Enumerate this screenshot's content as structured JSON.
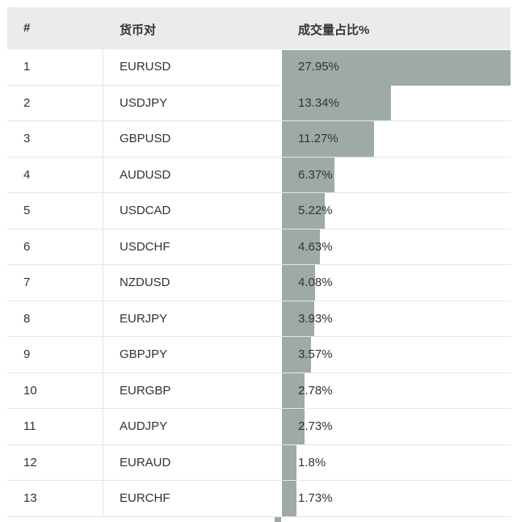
{
  "header": {
    "rank": "#",
    "pair": "货币对",
    "share": "成交量占比%"
  },
  "colors": {
    "bar": "#9eaaa8",
    "header_bg": "#ebebeb"
  },
  "chart_data": {
    "type": "table",
    "columns": [
      "#",
      "货币对",
      "成交量占比%"
    ],
    "rows": [
      {
        "rank": "1",
        "pair": "EURUSD",
        "label": "27.95%",
        "value": 27.95
      },
      {
        "rank": "2",
        "pair": "USDJPY",
        "label": "13.34%",
        "value": 13.34
      },
      {
        "rank": "3",
        "pair": "GBPUSD",
        "label": "11.27%",
        "value": 11.27
      },
      {
        "rank": "4",
        "pair": "AUDUSD",
        "label": "6.37%",
        "value": 6.37
      },
      {
        "rank": "5",
        "pair": "USDCAD",
        "label": "5.22%",
        "value": 5.22
      },
      {
        "rank": "6",
        "pair": "USDCHF",
        "label": "4.63%",
        "value": 4.63
      },
      {
        "rank": "7",
        "pair": "NZDUSD",
        "label": "4.08%",
        "value": 4.08
      },
      {
        "rank": "8",
        "pair": "EURJPY",
        "label": "3.93%",
        "value": 3.93
      },
      {
        "rank": "9",
        "pair": "GBPJPY",
        "label": "3.57%",
        "value": 3.57
      },
      {
        "rank": "10",
        "pair": "EURGBP",
        "label": "2.78%",
        "value": 2.78
      },
      {
        "rank": "11",
        "pair": "AUDJPY",
        "label": "2.73%",
        "value": 2.73
      },
      {
        "rank": "12",
        "pair": "EURAUD",
        "label": "1.8%",
        "value": 1.8
      },
      {
        "rank": "13",
        "pair": "EURCHF",
        "label": "1.73%",
        "value": 1.73
      }
    ]
  }
}
